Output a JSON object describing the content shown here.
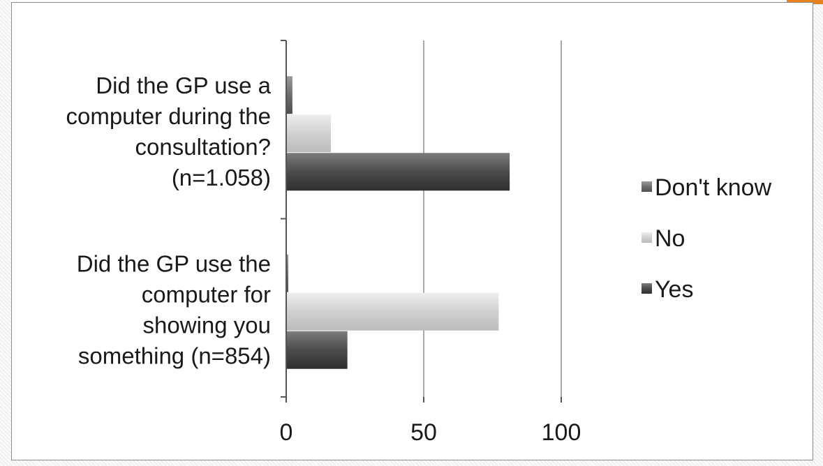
{
  "accent_color": "#e8821e",
  "chart_data": {
    "type": "bar",
    "orientation": "horizontal",
    "categories": [
      [
        "Did the GP use a",
        "computer during the",
        "consultation?",
        "(n=1.058)"
      ],
      [
        "Did the GP use the",
        "computer for",
        "showing you",
        "something (n=854)"
      ]
    ],
    "series": [
      {
        "name": "Don't know",
        "values": [
          2,
          0.5
        ],
        "color": "#6e6e6e"
      },
      {
        "name": "No",
        "values": [
          16,
          77
        ],
        "color": "#d4d4d4"
      },
      {
        "name": "Yes",
        "values": [
          81,
          22
        ],
        "color": "#4a4a4a"
      }
    ],
    "xlim": [
      0,
      100
    ],
    "xticks": [
      "0",
      "50",
      "100"
    ],
    "grid": true,
    "legend_position": "right"
  }
}
